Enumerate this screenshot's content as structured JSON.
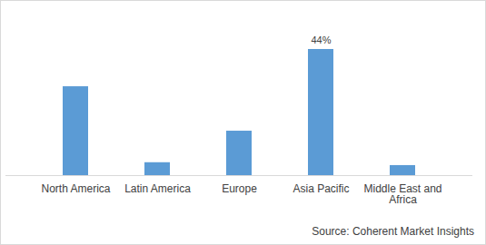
{
  "chart_data": {
    "type": "bar",
    "categories": [
      "North America",
      "Latin America",
      "Europe",
      "Asia Pacific",
      "Middle East and Africa"
    ],
    "values": [
      31,
      4.5,
      15.5,
      44,
      3.5
    ],
    "value_labels": [
      null,
      null,
      null,
      "44%",
      null
    ],
    "color": "#5b9bd5",
    "ylim": [
      0,
      44
    ],
    "tick_labels": "x",
    "caption": "Source: Coherent Market Insights"
  }
}
